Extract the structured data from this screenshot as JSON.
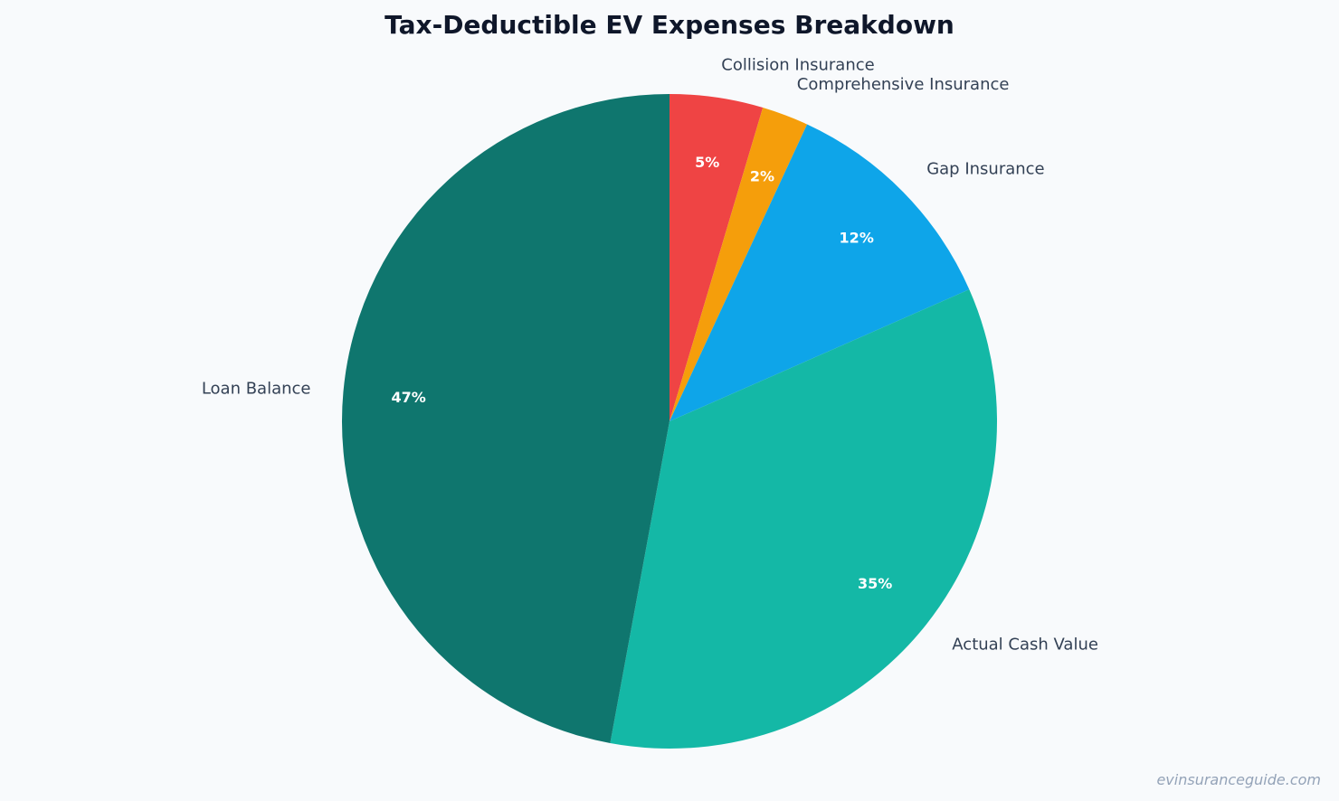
{
  "chart_data": {
    "type": "pie",
    "title": "Tax-Deductible EV Expenses Breakdown",
    "start_angle_deg": 90,
    "direction": "clockwise",
    "slices": [
      {
        "label": "Collision Insurance",
        "value": 4.6,
        "pct_label": "5%",
        "color": "#ef4444"
      },
      {
        "label": "Comprehensive Insurance",
        "value": 2.3,
        "pct_label": "2%",
        "color": "#f59e0b"
      },
      {
        "label": "Gap Insurance",
        "value": 11.5,
        "pct_label": "12%",
        "color": "#0ea5e9"
      },
      {
        "label": "Actual Cash Value",
        "value": 34.5,
        "pct_label": "35%",
        "color": "#14b8a6"
      },
      {
        "label": "Loan Balance",
        "value": 47.1,
        "pct_label": "47%",
        "color": "#0f766e"
      }
    ]
  },
  "watermark": "evinsuranceguide.com"
}
